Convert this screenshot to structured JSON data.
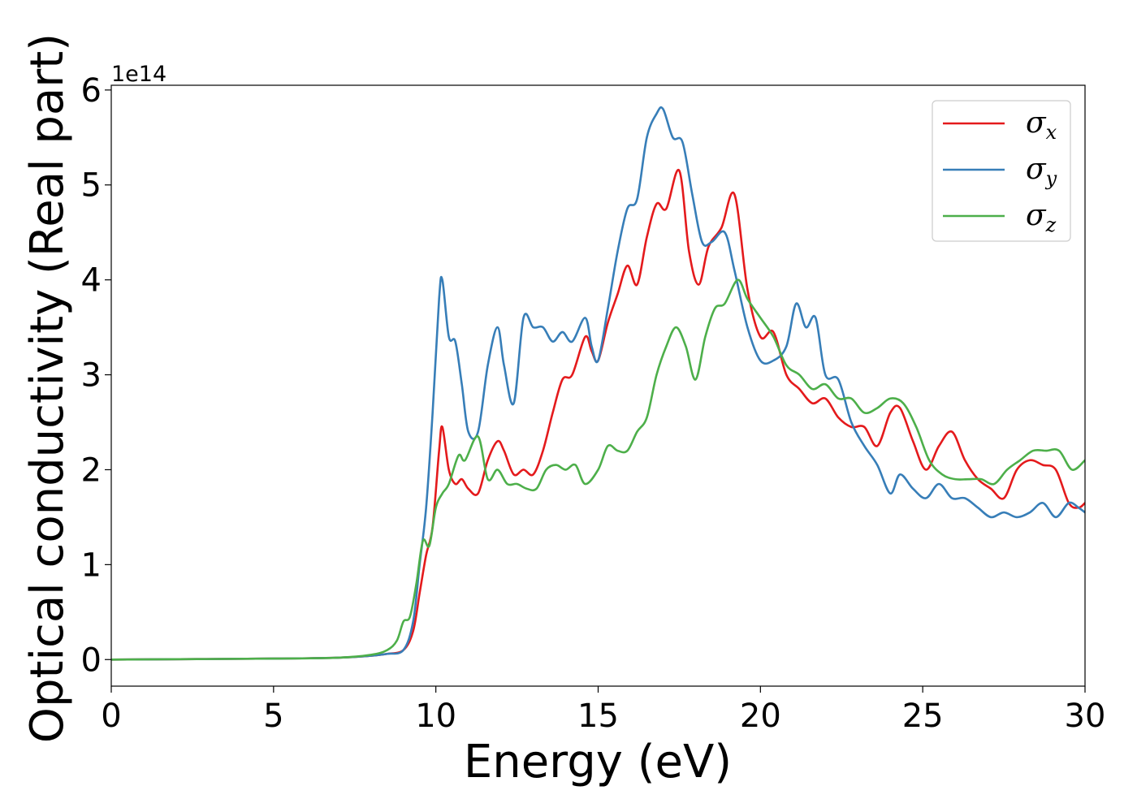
{
  "chart_data": {
    "type": "line",
    "title": "",
    "xlabel": "Energy (eV)",
    "ylabel": "Optical conductivity (Real part)",
    "y_offset_label": "1e14",
    "xlim": [
      0,
      30
    ],
    "ylim": [
      -0.28,
      6.05
    ],
    "x_ticks": [
      "0",
      "5",
      "10",
      "15",
      "20",
      "25",
      "30"
    ],
    "y_ticks": [
      "0",
      "1",
      "2",
      "3",
      "4",
      "5",
      "6"
    ],
    "grid": false,
    "legend_position": "top-right",
    "series": [
      {
        "name": "σx",
        "symbol": "σ",
        "subscript": "x",
        "color": "#e41a1c",
        "x": [
          0,
          5,
          7,
          8,
          8.5,
          9,
          9.3,
          9.5,
          9.7,
          9.9,
          10.1,
          10.2,
          10.4,
          10.6,
          10.8,
          11,
          11.3,
          11.6,
          11.9,
          12.1,
          12.4,
          12.7,
          13,
          13.3,
          13.6,
          13.9,
          14.2,
          14.6,
          14.8,
          15,
          15.3,
          15.6,
          15.9,
          16.2,
          16.5,
          16.8,
          17.1,
          17.5,
          17.8,
          18.1,
          18.4,
          18.8,
          19.2,
          19.6,
          20,
          20.4,
          20.8,
          21.2,
          21.6,
          22,
          22.4,
          22.8,
          23.2,
          23.6,
          24,
          24.3,
          24.7,
          25.1,
          25.5,
          25.9,
          26.3,
          26.7,
          27.1,
          27.5,
          27.9,
          28.3,
          28.7,
          29.1,
          29.5,
          29.8,
          30
        ],
        "y": [
          0,
          0.01,
          0.02,
          0.04,
          0.06,
          0.1,
          0.3,
          0.7,
          1.1,
          1.4,
          2.2,
          2.45,
          2.0,
          1.85,
          1.9,
          1.8,
          1.75,
          2.1,
          2.3,
          2.2,
          1.95,
          2.0,
          1.95,
          2.2,
          2.6,
          2.95,
          3.0,
          3.4,
          3.25,
          3.15,
          3.55,
          3.85,
          4.15,
          3.95,
          4.45,
          4.8,
          4.75,
          5.15,
          4.3,
          3.95,
          4.35,
          4.55,
          4.9,
          3.9,
          3.4,
          3.45,
          3.0,
          2.85,
          2.7,
          2.75,
          2.55,
          2.45,
          2.45,
          2.25,
          2.6,
          2.65,
          2.3,
          2.0,
          2.25,
          2.4,
          2.1,
          1.9,
          1.8,
          1.7,
          2.0,
          2.1,
          2.05,
          2.0,
          1.65,
          1.6,
          1.65
        ]
      },
      {
        "name": "σy",
        "symbol": "σ",
        "subscript": "y",
        "color": "#377eb8",
        "x": [
          0,
          5,
          7,
          8,
          8.5,
          9,
          9.3,
          9.5,
          9.7,
          9.9,
          10.1,
          10.2,
          10.4,
          10.6,
          10.8,
          11,
          11.3,
          11.6,
          11.9,
          12.1,
          12.4,
          12.7,
          13,
          13.3,
          13.6,
          13.9,
          14.2,
          14.6,
          14.8,
          15,
          15.3,
          15.6,
          15.9,
          16.2,
          16.5,
          16.8,
          17,
          17.3,
          17.6,
          17.9,
          18.2,
          18.5,
          18.9,
          19.2,
          19.6,
          20,
          20.4,
          20.8,
          21.1,
          21.4,
          21.7,
          22,
          22.4,
          22.8,
          23.2,
          23.6,
          24,
          24.3,
          24.7,
          25.1,
          25.5,
          25.9,
          26.3,
          26.7,
          27.1,
          27.5,
          27.9,
          28.3,
          28.7,
          29.1,
          29.5,
          29.8,
          30
        ],
        "y": [
          0,
          0.01,
          0.02,
          0.04,
          0.06,
          0.1,
          0.4,
          1.0,
          1.6,
          2.6,
          3.8,
          4.0,
          3.4,
          3.35,
          2.9,
          2.4,
          2.4,
          3.1,
          3.5,
          3.1,
          2.7,
          3.6,
          3.5,
          3.5,
          3.35,
          3.45,
          3.35,
          3.6,
          3.3,
          3.15,
          3.7,
          4.3,
          4.75,
          4.85,
          5.5,
          5.75,
          5.8,
          5.5,
          5.45,
          4.9,
          4.4,
          4.4,
          4.5,
          4.1,
          3.5,
          3.15,
          3.15,
          3.3,
          3.75,
          3.5,
          3.6,
          3.0,
          2.95,
          2.5,
          2.25,
          2.05,
          1.75,
          1.95,
          1.8,
          1.7,
          1.85,
          1.7,
          1.7,
          1.6,
          1.5,
          1.55,
          1.5,
          1.55,
          1.65,
          1.5,
          1.65,
          1.6,
          1.55
        ]
      },
      {
        "name": "σz",
        "symbol": "σ",
        "subscript": "z",
        "color": "#4daf4a",
        "x": [
          0,
          5,
          7,
          8,
          8.5,
          8.8,
          9,
          9.2,
          9.4,
          9.6,
          9.8,
          10,
          10.2,
          10.4,
          10.7,
          10.9,
          11.3,
          11.6,
          11.9,
          12.2,
          12.5,
          12.8,
          13.1,
          13.4,
          13.7,
          14,
          14.3,
          14.6,
          15,
          15.3,
          15.6,
          15.9,
          16.2,
          16.5,
          16.8,
          17.1,
          17.4,
          17.7,
          18,
          18.3,
          18.6,
          18.9,
          19.3,
          19.6,
          20,
          20.4,
          20.8,
          21.2,
          21.6,
          22,
          22.4,
          22.8,
          23.2,
          23.6,
          24,
          24.4,
          24.8,
          25.2,
          25.6,
          26,
          26.4,
          26.8,
          27.2,
          27.6,
          28,
          28.4,
          28.8,
          29.2,
          29.6,
          30
        ],
        "y": [
          0,
          0.01,
          0.02,
          0.05,
          0.1,
          0.2,
          0.4,
          0.45,
          0.8,
          1.25,
          1.2,
          1.6,
          1.75,
          1.85,
          2.15,
          2.1,
          2.35,
          1.9,
          2.0,
          1.85,
          1.85,
          1.8,
          1.8,
          2.0,
          2.05,
          2.0,
          2.05,
          1.85,
          2.0,
          2.25,
          2.2,
          2.2,
          2.4,
          2.55,
          3.0,
          3.3,
          3.5,
          3.3,
          2.95,
          3.4,
          3.7,
          3.75,
          4.0,
          3.8,
          3.6,
          3.4,
          3.1,
          3.0,
          2.85,
          2.9,
          2.75,
          2.75,
          2.6,
          2.65,
          2.75,
          2.7,
          2.45,
          2.1,
          1.95,
          1.9,
          1.9,
          1.9,
          1.85,
          2.0,
          2.1,
          2.2,
          2.2,
          2.2,
          2.0,
          2.1
        ]
      }
    ]
  }
}
